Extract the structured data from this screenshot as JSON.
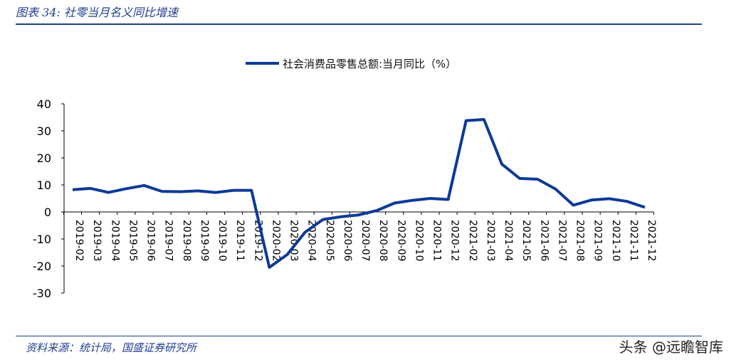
{
  "header": {
    "figure_label": "图表 34:",
    "title": "社零当月名义同比增速"
  },
  "footer": {
    "source": "资料来源：统计局，国盛证券研究所",
    "watermark": "头条 @远瞻智库"
  },
  "colors": {
    "series": "#0d3a96",
    "accent": "#1f3f8f",
    "axis": "#000000"
  },
  "chart_data": {
    "type": "line",
    "title": "",
    "xlabel": "",
    "ylabel": "",
    "ylim": [
      -30,
      40
    ],
    "yticks": [
      40,
      30,
      20,
      10,
      0,
      -10,
      -20,
      -30
    ],
    "grid": false,
    "legend_position": "top-center",
    "categories": [
      "2019-02",
      "2019-03",
      "2019-04",
      "2019-05",
      "2019-06",
      "2019-07",
      "2019-08",
      "2019-09",
      "2019-10",
      "2019-11",
      "2019-12",
      "2020-02",
      "2020-03",
      "2020-04",
      "2020-05",
      "2020-06",
      "2020-07",
      "2020-08",
      "2020-09",
      "2020-10",
      "2020-11",
      "2020-12",
      "2021-02",
      "2021-03",
      "2021-04",
      "2021-05",
      "2021-06",
      "2021-07",
      "2021-08",
      "2021-09",
      "2021-10",
      "2021-11",
      "2021-12"
    ],
    "series": [
      {
        "name": "社会消费品零售总额:当月同比（%）",
        "values": [
          8.2,
          8.7,
          7.2,
          8.6,
          9.8,
          7.6,
          7.5,
          7.8,
          7.2,
          8.0,
          8.0,
          -20.5,
          -15.8,
          -7.5,
          -2.8,
          -1.8,
          -1.1,
          0.5,
          3.3,
          4.3,
          5.0,
          4.6,
          33.8,
          34.2,
          17.7,
          12.4,
          12.1,
          8.5,
          2.5,
          4.4,
          4.9,
          3.9,
          1.7
        ]
      }
    ]
  }
}
